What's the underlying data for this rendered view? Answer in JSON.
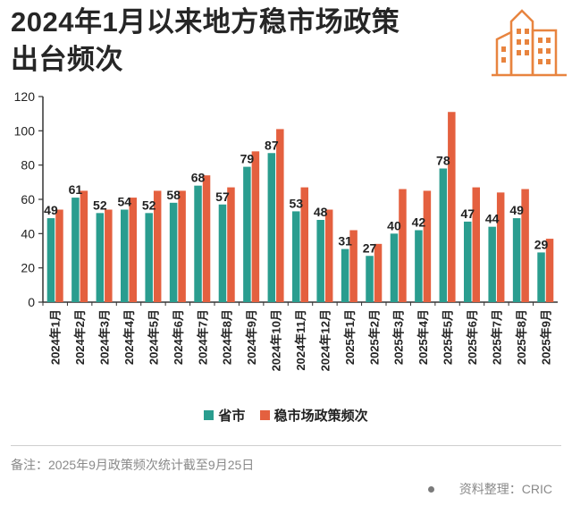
{
  "title": {
    "line1": "2024年1月以来地方稳市场政策",
    "line2": "出台频次"
  },
  "legend": {
    "series1": "省市",
    "series2": "稳市场政策频次"
  },
  "note": "备注：2025年9月政策频次统计截至9月25日",
  "source": "资料整理：CRIC",
  "colors": {
    "series1": "#2a9d8f",
    "series2": "#e4603f",
    "logo": "#e8843f",
    "axis": "#333333"
  },
  "chart_data": {
    "type": "bar",
    "categories": [
      "2024年1月",
      "2024年2月",
      "2024年3月",
      "2024年4月",
      "2024年5月",
      "2024年6月",
      "2024年7月",
      "2024年8月",
      "2024年9月",
      "2024年10月",
      "2024年11月",
      "2024年12月",
      "2025年1月",
      "2025年2月",
      "2025年3月",
      "2025年4月",
      "2025年5月",
      "2025年6月",
      "2025年7月",
      "2025年8月",
      "2025年9月"
    ],
    "series": [
      {
        "name": "省市",
        "values": [
          49,
          61,
          52,
          54,
          52,
          58,
          68,
          57,
          79,
          87,
          53,
          48,
          31,
          27,
          40,
          42,
          78,
          47,
          44,
          49,
          29
        ]
      },
      {
        "name": "稳市场政策频次",
        "values": [
          54,
          65,
          54,
          61,
          65,
          65,
          74,
          67,
          88,
          101,
          67,
          54,
          42,
          34,
          66,
          65,
          111,
          67,
          64,
          66,
          37
        ]
      }
    ],
    "data_labels": [
      "49",
      "61",
      "52",
      "54",
      "52",
      "58",
      "68",
      "57",
      "79",
      "87",
      "53",
      "48",
      "31",
      "27",
      "40",
      "42",
      "78",
      "47",
      "44",
      "49",
      "29"
    ],
    "ylim": [
      0,
      120
    ],
    "yticks": [
      "0",
      "20",
      "40",
      "60",
      "80",
      "100",
      "120"
    ],
    "grid": false,
    "legend_position": "bottom"
  }
}
